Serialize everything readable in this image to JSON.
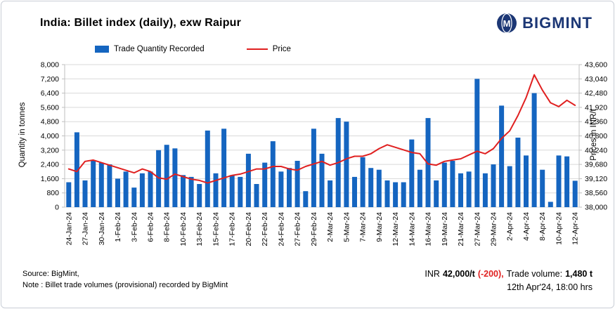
{
  "header": {
    "title": "India: Billet index (daily), exw Raipur",
    "brand": "BIGMINT",
    "logo_monogram": "M"
  },
  "legend": {
    "bars": "Trade Quantity Recorded",
    "line": "Price"
  },
  "axes": {
    "left_title": "Quantity in tonnes",
    "right_title": "Prices in INR/t"
  },
  "footer": {
    "source": "Source: BigMint,",
    "note": "Note : Billet trade volumes (provisional) recorded by BigMint",
    "price_prefix": "INR",
    "price_value": "42,000/t",
    "price_change": "(-200),",
    "volume_label": "Trade volume:",
    "volume_value": "1,480 t",
    "timestamp": "12th Apr'24, 18:00 hrs"
  },
  "colors": {
    "bar": "#1565c0",
    "line": "#e02020",
    "negative": "#e02020",
    "grid": "#d9d9d9",
    "axis": "#bfbfbf",
    "brand": "#1c3775"
  },
  "chart_data": {
    "type": "bar+line combo",
    "x_label_every": 2,
    "dates": [
      "24-Jan-24",
      "25-Jan-24",
      "27-Jan-24",
      "29-Jan-24",
      "30-Jan-24",
      "31-Jan-24",
      "1-Feb-24",
      "2-Feb-24",
      "3-Feb-24",
      "5-Feb-24",
      "6-Feb-24",
      "7-Feb-24",
      "8-Feb-24",
      "9-Feb-24",
      "10-Feb-24",
      "12-Feb-24",
      "13-Feb-24",
      "14-Feb-24",
      "15-Feb-24",
      "16-Feb-24",
      "17-Feb-24",
      "19-Feb-24",
      "20-Feb-24",
      "21-Feb-24",
      "22-Feb-24",
      "23-Feb-24",
      "24-Feb-24",
      "26-Feb-24",
      "27-Feb-24",
      "28-Feb-24",
      "29-Feb-24",
      "1-Mar-24",
      "2-Mar-24",
      "4-Mar-24",
      "5-Mar-24",
      "6-Mar-24",
      "7-Mar-24",
      "8-Mar-24",
      "9-Mar-24",
      "11-Mar-24",
      "12-Mar-24",
      "13-Mar-24",
      "14-Mar-24",
      "15-Mar-24",
      "16-Mar-24",
      "18-Mar-24",
      "19-Mar-24",
      "20-Mar-24",
      "21-Mar-24",
      "26-Mar-24",
      "27-Mar-24",
      "28-Mar-24",
      "29-Mar-24",
      "1-Apr-24",
      "2-Apr-24",
      "3-Apr-24",
      "4-Apr-24",
      "6-Apr-24",
      "8-Apr-24",
      "9-Apr-24",
      "10-Apr-24",
      "11-Apr-24",
      "12-Apr-24"
    ],
    "series": [
      {
        "name": "Trade Quantity Recorded",
        "type": "bar",
        "axis": "left",
        "values": [
          1400,
          4200,
          1500,
          2600,
          2500,
          2400,
          1600,
          2000,
          1100,
          1900,
          2000,
          3200,
          3500,
          3300,
          1800,
          1700,
          1300,
          4300,
          1900,
          4400,
          1800,
          1700,
          3000,
          1300,
          2500,
          3700,
          2000,
          2200,
          2600,
          900,
          4400,
          3000,
          1500,
          5000,
          4800,
          1700,
          2800,
          2200,
          2100,
          1500,
          1400,
          1400,
          3800,
          2100,
          5000,
          1500,
          2500,
          2600,
          1900,
          2000,
          7200,
          1900,
          2400,
          5700,
          2300,
          3900,
          2900,
          6400,
          2100,
          300,
          2900,
          2850,
          1480
        ]
      },
      {
        "name": "Price",
        "type": "line",
        "axis": "right",
        "values": [
          39500,
          39400,
          39800,
          39850,
          39750,
          39650,
          39550,
          39450,
          39350,
          39500,
          39400,
          39150,
          39100,
          39300,
          39200,
          39100,
          39050,
          38950,
          39050,
          39150,
          39250,
          39300,
          39400,
          39500,
          39500,
          39600,
          39600,
          39500,
          39450,
          39600,
          39700,
          39800,
          39650,
          39750,
          39900,
          40000,
          40000,
          40100,
          40300,
          40450,
          40350,
          40250,
          40150,
          40100,
          39700,
          39650,
          39800,
          39850,
          39900,
          40050,
          40200,
          40100,
          40300,
          40700,
          41000,
          41600,
          42300,
          43200,
          42600,
          42100,
          41950,
          42200,
          42000
        ]
      }
    ],
    "left_axis": {
      "title": "Quantity in tonnes",
      "min": 0,
      "max": 8000,
      "step": 800
    },
    "right_axis": {
      "title": "Prices in INR/t",
      "min": 38000,
      "max": 43600,
      "step": 800
    },
    "grid": true,
    "legend_position": "top"
  }
}
